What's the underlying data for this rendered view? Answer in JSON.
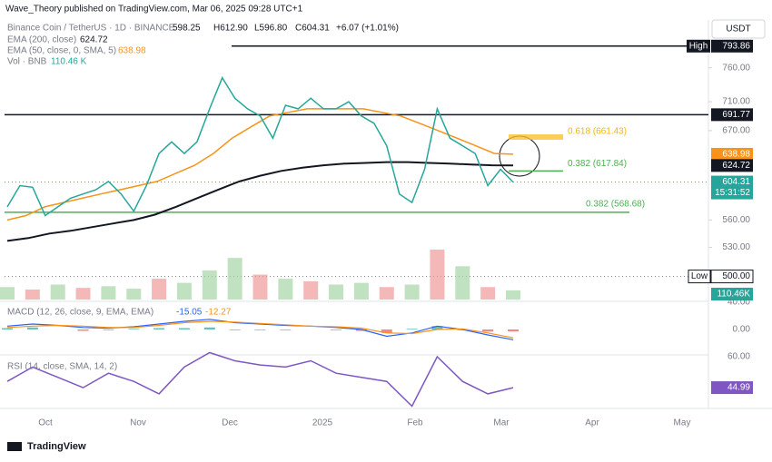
{
  "header": {
    "published": "Wave_Theory published on TradingView.com, Mar 06, 2025 09:28 UTC+1",
    "currency": "USDT",
    "brand": "TradingView"
  },
  "legend": {
    "symbol": "Binance Coin / TetherUS · 1D · BINANCE",
    "ohlc": [
      "598.25",
      "H612.90",
      "L596.80",
      "C604.31"
    ],
    "change": "+6.07 (+1.01%)",
    "ema200_label": "EMA (200, close)",
    "ema200_value": "624.72",
    "ema50_label": "EMA (50, close, 0, SMA, 5)",
    "ema50_value": "638.98",
    "vol_label": "Vol · BNB",
    "vol_value": "110.46 K"
  },
  "price": {
    "log": true,
    "ylim": [
      480,
      820
    ],
    "yticks": [
      {
        "value": 760,
        "label": "760.00"
      },
      {
        "value": 710,
        "label": "710.00"
      },
      {
        "value": 670,
        "label": "670.00"
      },
      {
        "value": 560,
        "label": "560.00"
      },
      {
        "value": 530,
        "label": "530.00"
      }
    ],
    "close_color": "#26a69a",
    "close": [
      575,
      600,
      598,
      565,
      575,
      585,
      590,
      595,
      605,
      590,
      570,
      600,
      640,
      655,
      640,
      655,
      700,
      745,
      715,
      700,
      690,
      660,
      705,
      700,
      715,
      700,
      700,
      710,
      690,
      680,
      650,
      590,
      580,
      620,
      700,
      660,
      650,
      640,
      600,
      620,
      604.31
    ],
    "ema50_color": "#f7931a",
    "ema50": [
      560,
      565,
      575,
      580,
      585,
      590,
      595,
      600,
      605,
      615,
      625,
      640,
      660,
      675,
      690,
      695,
      700,
      700,
      700,
      700,
      695,
      690,
      680,
      670,
      660,
      650,
      640,
      638.98
    ],
    "ema200_color": "#131722",
    "ema200": [
      537,
      540,
      545,
      548,
      552,
      556,
      560,
      566,
      575,
      585,
      595,
      605,
      612,
      618,
      622,
      625,
      627,
      628,
      629,
      629,
      628,
      627,
      626,
      625,
      624.72
    ],
    "high": {
      "tag": "High",
      "value": 793.86
    },
    "resistance": 691.77,
    "fib_618": {
      "label": "0.618 (661.43)",
      "value": 661.43
    },
    "fib_382_upper": {
      "label": "0.382 (617.84)",
      "value": 617.84
    },
    "fib_382_lower": {
      "label": "0.382 (568.68)",
      "value": 568.68
    },
    "last": {
      "value": 604.31,
      "countdown": "15:31:52"
    },
    "ema50_badge": 638.98,
    "ema200_badge": 624.72,
    "low": {
      "tag": "Low",
      "value": {
        "value": 500,
        "label": "500.00"
      }
    }
  },
  "volume": {
    "badge": "110.46K",
    "values": [
      150,
      120,
      180,
      140,
      160,
      130,
      250,
      200,
      350,
      500,
      300,
      250,
      220,
      180,
      200,
      150,
      180,
      600,
      400,
      150,
      110.46
    ],
    "colors": [
      "#a5d6a7",
      "#ef9a9a",
      "#a5d6a7",
      "#ef9a9a",
      "#a5d6a7",
      "#a5d6a7",
      "#ef9a9a",
      "#a5d6a7",
      "#a5d6a7",
      "#a5d6a7",
      "#ef9a9a",
      "#a5d6a7",
      "#ef9a9a",
      "#a5d6a7",
      "#a5d6a7",
      "#ef9a9a",
      "#a5d6a7",
      "#ef9a9a",
      "#a5d6a7",
      "#ef9a9a",
      "#a5d6a7"
    ]
  },
  "macd": {
    "label": "MACD (12, 26, close, 9, EMA, EMA)",
    "macd_value": "-15.05",
    "signal_value": "-12.27",
    "yticks": [
      {
        "value": 40,
        "label": "40.00"
      },
      {
        "value": 0,
        "label": "0.00"
      }
    ],
    "macd_color": "#2962ff",
    "signal_color": "#f7931a",
    "macd": [
      5,
      8,
      6,
      3,
      2,
      4,
      8,
      12,
      15,
      10,
      8,
      6,
      5,
      3,
      0,
      -10,
      -5,
      5,
      0,
      -8,
      -15.05
    ],
    "signal": [
      3,
      5,
      6,
      5,
      3,
      3,
      6,
      10,
      12,
      11,
      9,
      7,
      5,
      4,
      2,
      -5,
      -6,
      0,
      1,
      -5,
      -12.27
    ],
    "histogram": [
      2,
      3,
      0,
      -2,
      -1,
      1,
      2,
      2,
      3,
      -1,
      -1,
      -1,
      0,
      -1,
      -2,
      -5,
      1,
      5,
      -1,
      -3,
      -2.78
    ]
  },
  "rsi": {
    "label": "RSI (14, close, SMA, 14, 2)",
    "value": 44.99,
    "color": "#7e57c2",
    "yticks": [
      {
        "value": 60,
        "label": "60.00"
      }
    ],
    "values": [
      48,
      55,
      50,
      45,
      52,
      48,
      42,
      55,
      62,
      58,
      56,
      55,
      58,
      52,
      50,
      48,
      36,
      60,
      48,
      42,
      44.99
    ]
  },
  "time_labels": [
    "Oct",
    "Nov",
    "Dec",
    "2025",
    "Feb",
    "Mar",
    "Apr",
    "May"
  ]
}
